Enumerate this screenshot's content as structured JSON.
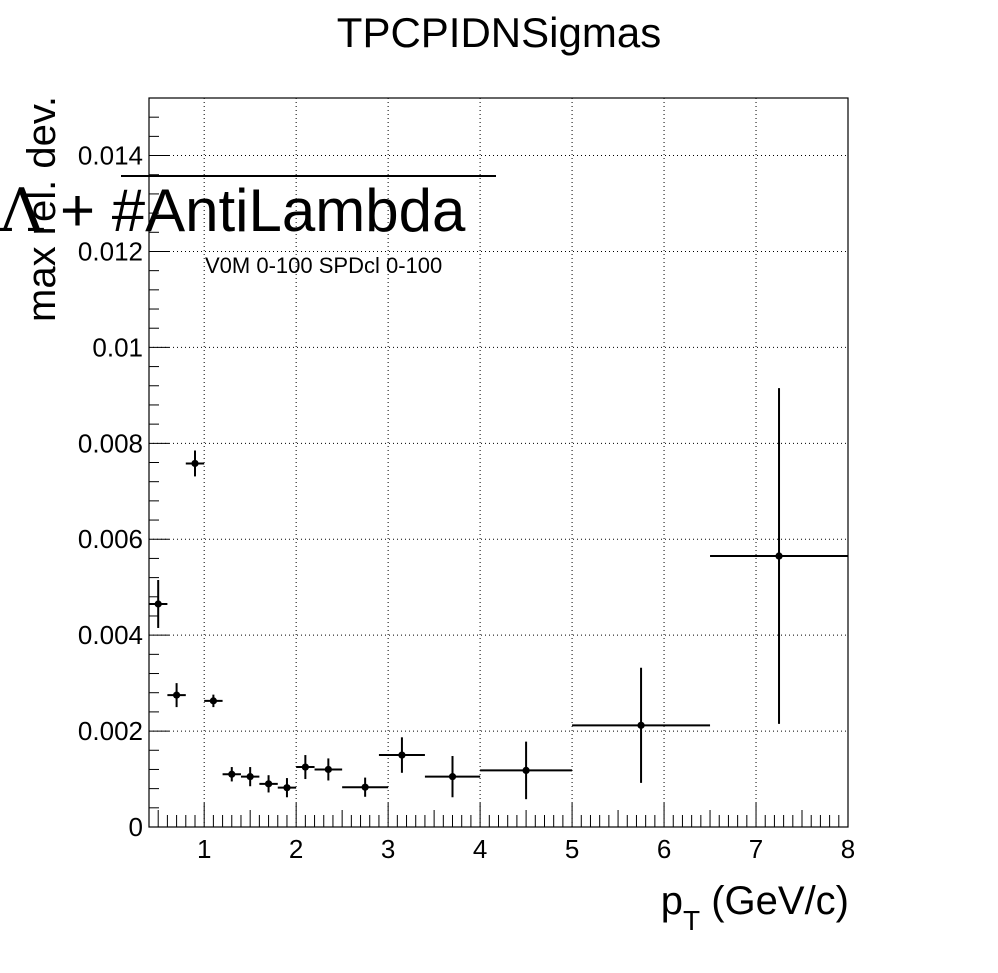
{
  "chart_data": {
    "type": "scatter",
    "title": "TPCPIDNSigmas",
    "xlabel_main": "p",
    "xlabel_sub": "T",
    "xlabel_unit": " (GeV/c)",
    "ylabel": "max rel. dev.",
    "legend_symbol": "Λ",
    "legend_text": " + #AntiLambda",
    "annotation": "V0M 0-100 SPDcl 0-100",
    "xlim": [
      0.4,
      8
    ],
    "ylim": [
      0,
      0.0152
    ],
    "grid": true,
    "x_ticks": [
      1,
      2,
      3,
      4,
      5,
      6,
      7,
      8
    ],
    "x_tick_labels": [
      "1",
      "2",
      "3",
      "4",
      "5",
      "6",
      "7",
      "8"
    ],
    "y_ticks": [
      0,
      0.002,
      0.004,
      0.006,
      0.008,
      0.01,
      0.012,
      0.014
    ],
    "y_tick_labels": [
      "0",
      "0.002",
      "0.004",
      "0.006",
      "0.008",
      "0.01",
      "0.012",
      "0.014"
    ],
    "points": [
      {
        "x": 0.5,
        "xerr": 0.1,
        "y": 0.00465,
        "yerr": 0.0005
      },
      {
        "x": 0.7,
        "xerr": 0.1,
        "y": 0.00275,
        "yerr": 0.00025
      },
      {
        "x": 0.9,
        "xerr": 0.1,
        "y": 0.00758,
        "yerr": 0.00027
      },
      {
        "x": 1.1,
        "xerr": 0.1,
        "y": 0.00263,
        "yerr": 0.00013
      },
      {
        "x": 1.3,
        "xerr": 0.1,
        "y": 0.0011,
        "yerr": 0.00015
      },
      {
        "x": 1.5,
        "xerr": 0.1,
        "y": 0.00105,
        "yerr": 0.0002
      },
      {
        "x": 1.7,
        "xerr": 0.1,
        "y": 0.0009,
        "yerr": 0.00018
      },
      {
        "x": 1.9,
        "xerr": 0.1,
        "y": 0.00082,
        "yerr": 0.0002
      },
      {
        "x": 2.1,
        "xerr": 0.1,
        "y": 0.00125,
        "yerr": 0.00025
      },
      {
        "x": 2.35,
        "xerr": 0.15,
        "y": 0.0012,
        "yerr": 0.00023
      },
      {
        "x": 2.75,
        "xerr": 0.25,
        "y": 0.00083,
        "yerr": 0.0002
      },
      {
        "x": 3.15,
        "xerr": 0.25,
        "y": 0.0015,
        "yerr": 0.00037
      },
      {
        "x": 3.7,
        "xerr": 0.3,
        "y": 0.00105,
        "yerr": 0.00043
      },
      {
        "x": 4.5,
        "xerr": 0.5,
        "y": 0.00118,
        "yerr": 0.0006
      },
      {
        "x": 5.75,
        "xerr": 0.75,
        "y": 0.00212,
        "yerr": 0.0012
      },
      {
        "x": 7.25,
        "xerr": 0.75,
        "y": 0.00565,
        "yerr": 0.0035
      }
    ]
  }
}
